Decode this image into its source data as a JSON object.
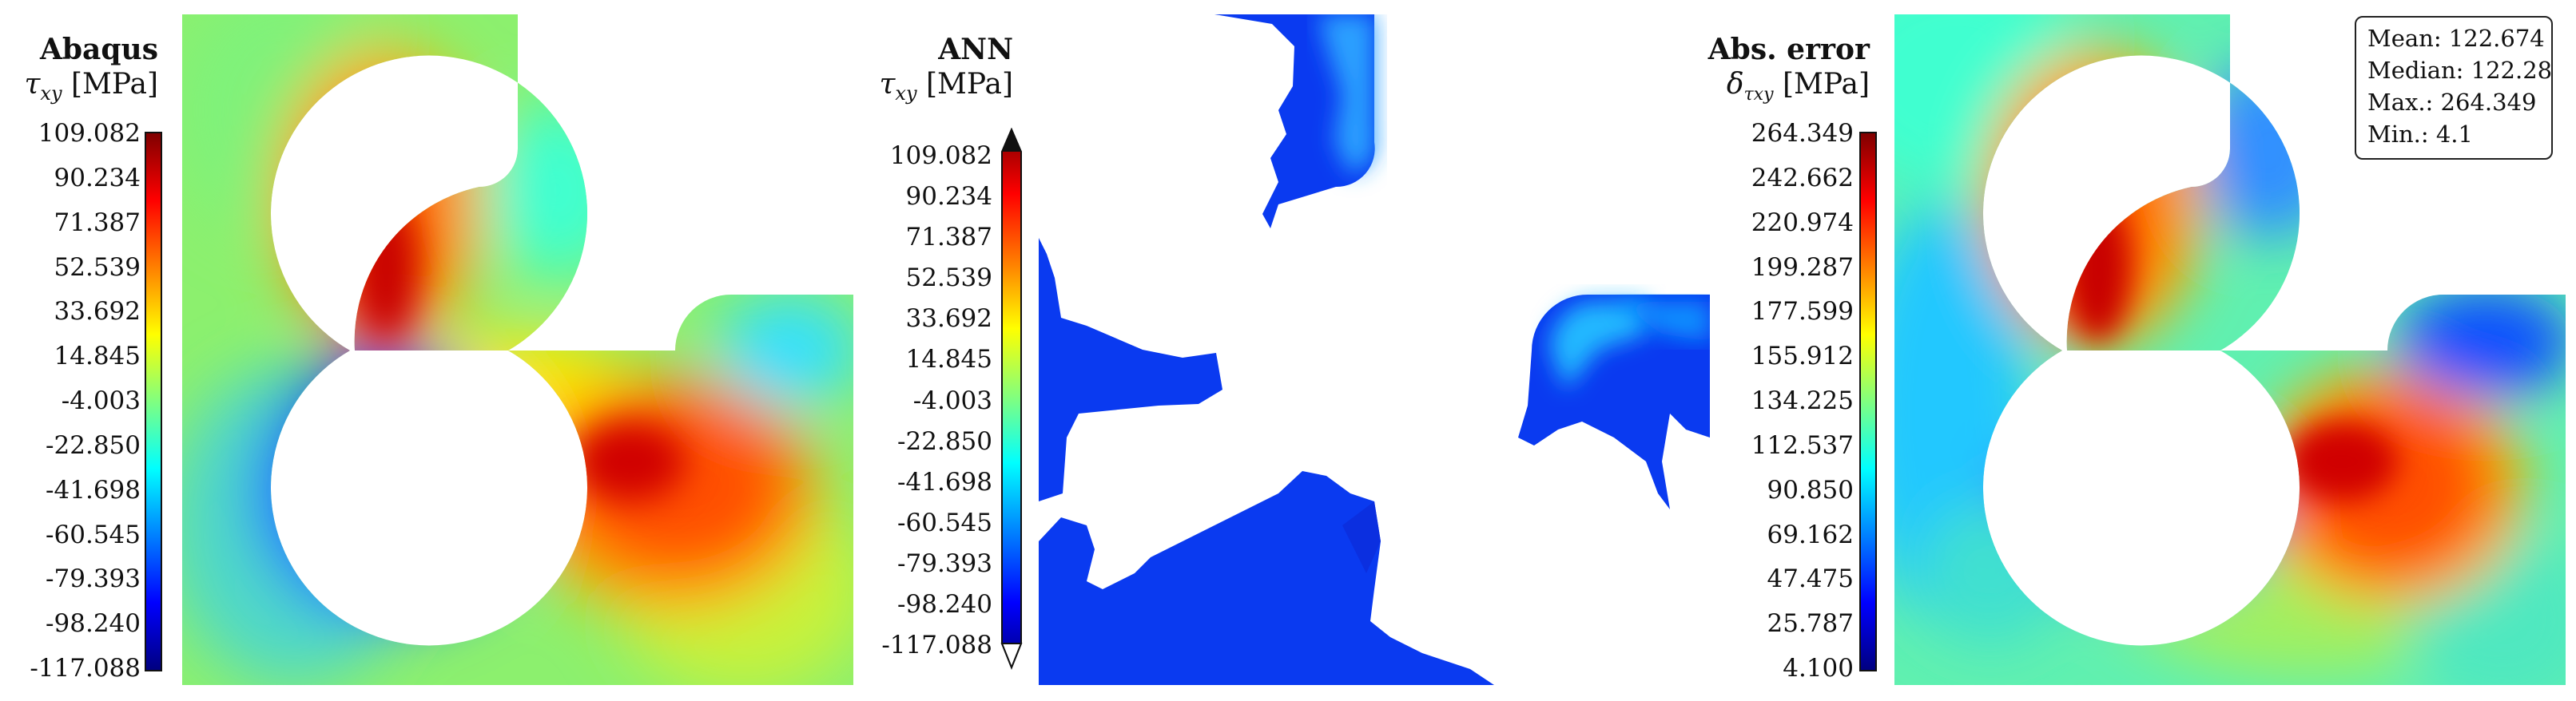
{
  "chart_data": [
    {
      "type": "heatmap",
      "title": "Abaqus",
      "quantity": "τ",
      "quantity_sub": "xy",
      "unit": "[MPa]",
      "colormap": "jet",
      "colorbar_range": [
        -117.088,
        109.082
      ],
      "colorbar_ticks": [
        "109.082",
        "90.234",
        "71.387",
        "52.539",
        "33.692",
        "14.845",
        "-4.003",
        "-22.850",
        "-41.698",
        "-60.545",
        "-79.393",
        "-98.240",
        "-117.088"
      ]
    },
    {
      "type": "heatmap",
      "title": "ANN",
      "quantity": "τ",
      "quantity_sub": "xy",
      "unit": "[MPa]",
      "colormap": "jet",
      "colorbar_range": [
        -117.088,
        109.082
      ],
      "colorbar_extend": "both",
      "colorbar_ticks": [
        "109.082",
        "90.234",
        "71.387",
        "52.539",
        "33.692",
        "14.845",
        "-4.003",
        "-22.850",
        "-41.698",
        "-60.545",
        "-79.393",
        "-98.240",
        "-117.088"
      ]
    },
    {
      "type": "heatmap",
      "title": "Abs. error",
      "quantity": "δ",
      "quantity_sub": "τxy",
      "unit": "[MPa]",
      "colormap": "jet",
      "colorbar_range": [
        4.1,
        264.349
      ],
      "colorbar_ticks": [
        "264.349",
        "242.662",
        "220.974",
        "199.287",
        "177.599",
        "155.912",
        "134.225",
        "112.537",
        "90.850",
        "69.162",
        "47.475",
        "25.787",
        "4.100"
      ],
      "stats": {
        "mean": "Mean: 122.674",
        "median": "Median: 122.28",
        "max": "Max.: 264.349",
        "min": "Min.: 4.1"
      }
    }
  ]
}
